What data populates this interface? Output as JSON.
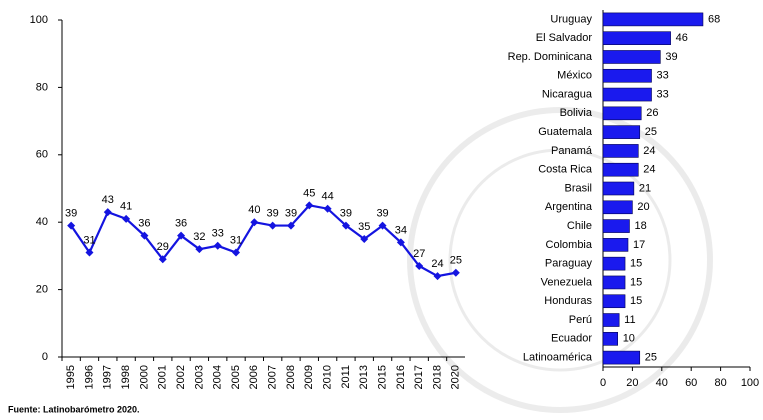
{
  "chart_data": [
    {
      "type": "line",
      "categories": [
        "1995",
        "1996",
        "1997",
        "1998",
        "2000",
        "2001",
        "2002",
        "2003",
        "2004",
        "2005",
        "2006",
        "2007",
        "2008",
        "2009",
        "2010",
        "2011",
        "2013",
        "2015",
        "2016",
        "2017",
        "2018",
        "2020"
      ],
      "values": [
        39,
        31,
        43,
        41,
        36,
        29,
        36,
        32,
        33,
        31,
        40,
        39,
        39,
        45,
        44,
        39,
        35,
        39,
        34,
        27,
        24,
        25
      ],
      "color": "#1414e0",
      "ylim": [
        0,
        100
      ],
      "yticks": [
        0,
        20,
        40,
        60,
        80,
        100
      ],
      "grid": false
    },
    {
      "type": "hbar",
      "categories": [
        "Uruguay",
        "El Salvador",
        "Rep. Dominicana",
        "México",
        "Nicaragua",
        "Bolivia",
        "Guatemala",
        "Panamá",
        "Costa Rica",
        "Brasil",
        "Argentina",
        "Chile",
        "Colombia",
        "Paraguay",
        "Venezuela",
        "Honduras",
        "Perú",
        "Ecuador",
        "Latinoamérica"
      ],
      "values": [
        68,
        46,
        39,
        33,
        33,
        26,
        25,
        24,
        24,
        21,
        20,
        18,
        17,
        15,
        15,
        15,
        11,
        10,
        25
      ],
      "color": "#1a1aee",
      "xlim": [
        0,
        100
      ],
      "xticks": [
        0,
        20,
        40,
        60,
        80,
        100
      ],
      "grid": false
    }
  ],
  "source": "Fuente: Latinobarómetro 2020."
}
